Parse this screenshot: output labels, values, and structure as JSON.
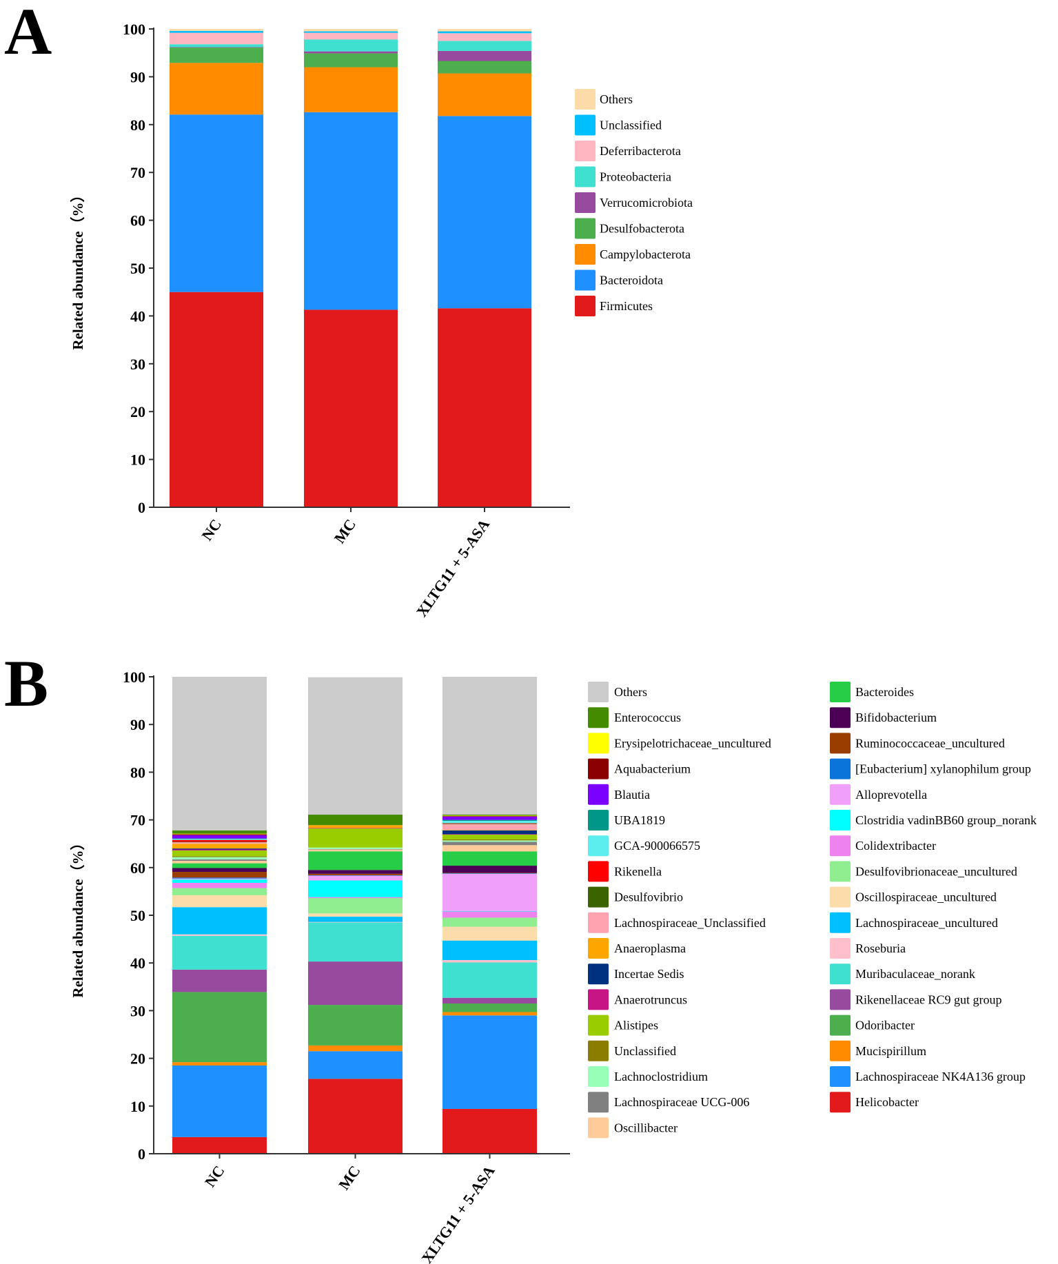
{
  "chart_data": [
    {
      "type": "bar",
      "stacked": true,
      "panel": "A",
      "title": "",
      "xlabel": "",
      "ylabel": "Related abundance（%）",
      "ylim": [
        0,
        100
      ],
      "yticks": [
        0,
        10,
        20,
        30,
        40,
        50,
        60,
        70,
        80,
        90,
        100
      ],
      "categories": [
        "NC",
        "MC",
        "XLTG11 + 5-ASA"
      ],
      "legend_position": "right",
      "series": [
        {
          "name": "Others",
          "color": "#FDDBA8",
          "values": [
            0.4,
            0.5,
            0.5
          ]
        },
        {
          "name": "Unclassified",
          "color": "#00BFFF",
          "values": [
            0.4,
            0.3,
            0.4
          ]
        },
        {
          "name": "Deferribacterota",
          "color": "#FFB6C1",
          "values": [
            2.4,
            1.4,
            1.6
          ]
        },
        {
          "name": "Proteobacteria",
          "color": "#40E0D0",
          "values": [
            0.6,
            2.5,
            2.1
          ]
        },
        {
          "name": "Verrucomicrobiota",
          "color": "#964B9E",
          "values": [
            0.1,
            0.4,
            2.1
          ]
        },
        {
          "name": "Desulfobacterota",
          "color": "#4CAE4C",
          "values": [
            3.2,
            2.9,
            2.6
          ]
        },
        {
          "name": "Campylobacterota",
          "color": "#FF8C00",
          "values": [
            10.8,
            9.4,
            8.9
          ]
        },
        {
          "name": "Bacteroidota",
          "color": "#1E90FF",
          "values": [
            37.1,
            41.3,
            40.2
          ]
        },
        {
          "name": "Firmicutes",
          "color": "#E31A1C",
          "values": [
            45.0,
            41.3,
            41.6
          ]
        }
      ]
    },
    {
      "type": "bar",
      "stacked": true,
      "panel": "B",
      "title": "",
      "xlabel": "",
      "ylabel": "Related abundance（%）",
      "ylim": [
        0,
        100
      ],
      "yticks": [
        0,
        10,
        20,
        30,
        40,
        50,
        60,
        70,
        80,
        90,
        100
      ],
      "categories": [
        "NC",
        "MC",
        "XLTG11 + 5-ASA"
      ],
      "legend_position": "right",
      "series": [
        {
          "name": "Others",
          "color": "#CCCCCC",
          "values": [
            32.2,
            28.8,
            28.9
          ]
        },
        {
          "name": "Enterococcus",
          "color": "#458B00",
          "values": [
            0.7,
            2.2,
            0.2
          ]
        },
        {
          "name": "Erysipelotrichaceae_uncultured",
          "color": "#FFFF00",
          "values": [
            0.1,
            0.0,
            0.1
          ]
        },
        {
          "name": "Aquabacterium",
          "color": "#8B0000",
          "values": [
            0.2,
            0.0,
            0.1
          ]
        },
        {
          "name": "Blautia",
          "color": "#7B00FF",
          "values": [
            0.7,
            0.0,
            0.7
          ]
        },
        {
          "name": "UBA1819",
          "color": "#009688",
          "values": [
            0.1,
            0.0,
            0.2
          ]
        },
        {
          "name": "GCA-900066575",
          "color": "#5CEEEE",
          "values": [
            0.2,
            0.0,
            0.5
          ]
        },
        {
          "name": "Rikenella",
          "color": "#FF0000",
          "values": [
            0.4,
            0.0,
            0.1
          ]
        },
        {
          "name": "Desulfovibrio",
          "color": "#3B6300",
          "values": [
            0.1,
            0.0,
            0.1
          ]
        },
        {
          "name": "Lachnospiraceae_Unclassified",
          "color": "#FFA3B1",
          "values": [
            0.3,
            0.0,
            1.2
          ]
        },
        {
          "name": "Anaeroplasma",
          "color": "#FFA500",
          "values": [
            1.0,
            0.6,
            0.1
          ]
        },
        {
          "name": "Incertae Sedis",
          "color": "#003080",
          "values": [
            0.2,
            0.0,
            0.8
          ]
        },
        {
          "name": "Anaerotruncus",
          "color": "#C71585",
          "values": [
            0.2,
            0.1,
            0.1
          ]
        },
        {
          "name": "Alistipes",
          "color": "#9ACD00",
          "values": [
            1.2,
            4.0,
            1.0
          ]
        },
        {
          "name": "Unclassified",
          "color": "#8B7D00",
          "values": [
            0.2,
            0.0,
            0.2
          ]
        },
        {
          "name": "Lachnoclostridium",
          "color": "#98FFB8",
          "values": [
            0.5,
            0.3,
            0.3
          ]
        },
        {
          "name": "Lachnospiraceae UCG-006",
          "color": "#808080",
          "values": [
            0.3,
            0.1,
            0.7
          ]
        },
        {
          "name": "Oscillibacter",
          "color": "#FFCC99",
          "values": [
            0.5,
            0.4,
            1.3
          ]
        },
        {
          "name": "Bacteroides",
          "color": "#27CC47",
          "values": [
            1.0,
            3.9,
            3.0
          ]
        },
        {
          "name": "Bifidobacterium",
          "color": "#4B0055",
          "values": [
            0.8,
            0.8,
            1.5
          ]
        },
        {
          "name": "Ruminococcaceae_uncultured",
          "color": "#993D00",
          "values": [
            1.2,
            0.3,
            0.1
          ]
        },
        {
          "name": "[Eubacterium] xylanophilum group",
          "color": "#0A74DA",
          "values": [
            0.2,
            0.1,
            0.1
          ]
        },
        {
          "name": "Alloprevotella",
          "color": "#F0A0F8",
          "values": [
            0.2,
            1.0,
            7.8
          ]
        },
        {
          "name": "Clostridia vadinBB60 group_norank",
          "color": "#00FFFF",
          "values": [
            0.7,
            3.5,
            0.1
          ]
        },
        {
          "name": "Colidextribacter",
          "color": "#EE82EE",
          "values": [
            1.1,
            0.2,
            1.3
          ]
        },
        {
          "name": "Desulfovibrionaceae_uncultured",
          "color": "#90EE90",
          "values": [
            1.5,
            3.2,
            1.9
          ]
        },
        {
          "name": "Oscillospiraceae_uncultured",
          "color": "#FCDCAA",
          "values": [
            2.5,
            0.7,
            2.9
          ]
        },
        {
          "name": "Lachnospiraceae_uncultured",
          "color": "#00BFFF",
          "values": [
            5.7,
            1.1,
            4.1
          ]
        },
        {
          "name": "Roseburia",
          "color": "#FFC0CB",
          "values": [
            0.3,
            0.1,
            0.5
          ]
        },
        {
          "name": "Muribaculaceae_norank",
          "color": "#40E0D0",
          "values": [
            7.1,
            8.2,
            7.4
          ]
        },
        {
          "name": "Rikenellaceae RC9 gut group",
          "color": "#964B9E",
          "values": [
            4.7,
            9.1,
            1.2
          ]
        },
        {
          "name": "Odoribacter",
          "color": "#4CAE4C",
          "values": [
            14.7,
            8.5,
            1.8
          ]
        },
        {
          "name": "Mucispirillum",
          "color": "#FF8C00",
          "values": [
            0.7,
            1.2,
            0.7
          ]
        },
        {
          "name": "Lachnospiraceae NK4A136 group",
          "color": "#1E90FF",
          "values": [
            15.0,
            5.8,
            19.6
          ]
        },
        {
          "name": "Helicobacter",
          "color": "#E31A1C",
          "values": [
            3.5,
            15.7,
            9.4
          ]
        }
      ]
    }
  ]
}
